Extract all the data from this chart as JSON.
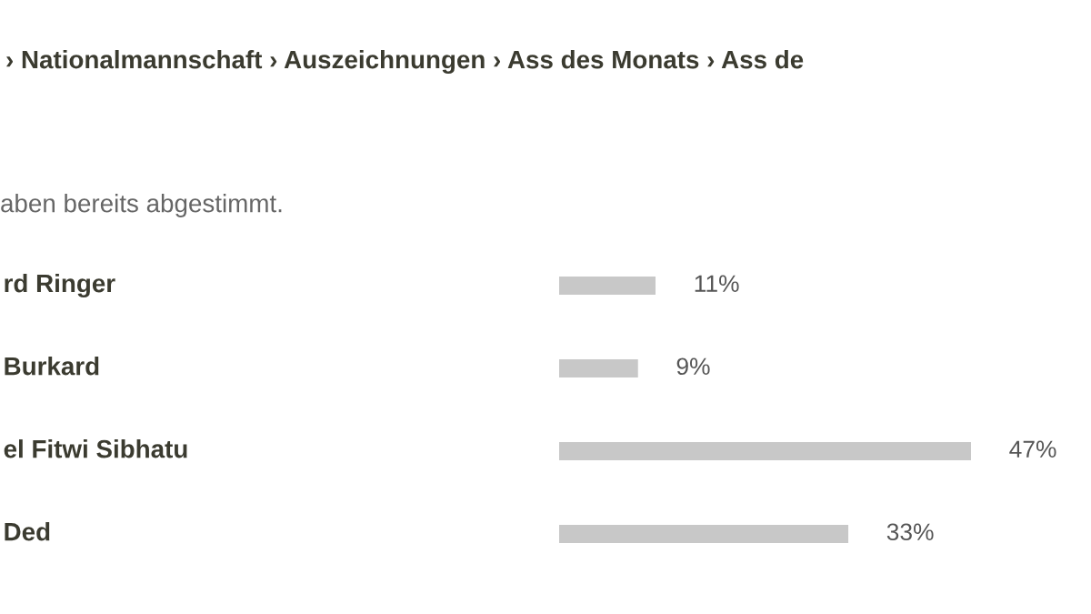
{
  "chart_data": {
    "type": "bar",
    "orientation": "horizontal",
    "title": "› Nationalmannschaft › Auszeichnungen › Ass des Monats › Ass de",
    "subtitle": "aben bereits abgestimmt.",
    "categories": [
      "rd Ringer",
      "Burkard",
      "el Fitwi Sibhatu",
      "Ded"
    ],
    "values": [
      11,
      9,
      47,
      33
    ],
    "color": "#c8c8c8",
    "value_labels": [
      "11%",
      "9%",
      "47%",
      "33%"
    ]
  }
}
